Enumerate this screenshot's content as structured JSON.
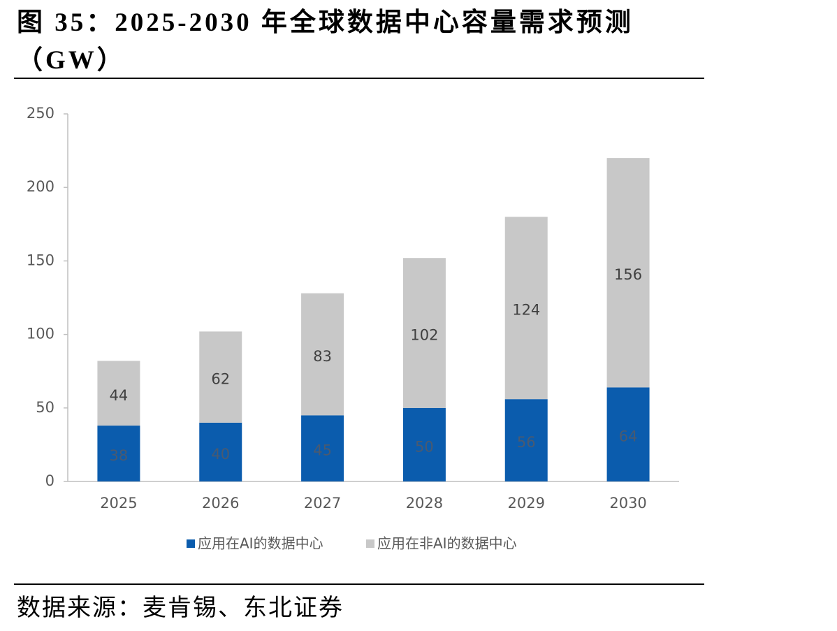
{
  "chart_data": {
    "type": "stacked-bar",
    "title": "图 35：2025-2030 年全球数据中心容量需求预测（GW）",
    "categories": [
      "2025",
      "2026",
      "2027",
      "2028",
      "2029",
      "2030"
    ],
    "series": [
      {
        "name": "应用在AI的数据中心",
        "color": "#0b5cad",
        "values": [
          38,
          40,
          45,
          50,
          56,
          64
        ]
      },
      {
        "name": "应用在非AI的数据中心",
        "color": "#c8c8c8",
        "values": [
          44,
          62,
          83,
          102,
          124,
          156
        ]
      }
    ],
    "ylim": [
      0,
      250
    ],
    "yticks": [
      0,
      50,
      100,
      150,
      200,
      250
    ],
    "grid": false,
    "legend": "bottom"
  },
  "source": "数据来源：麦肯锡、东北证券"
}
